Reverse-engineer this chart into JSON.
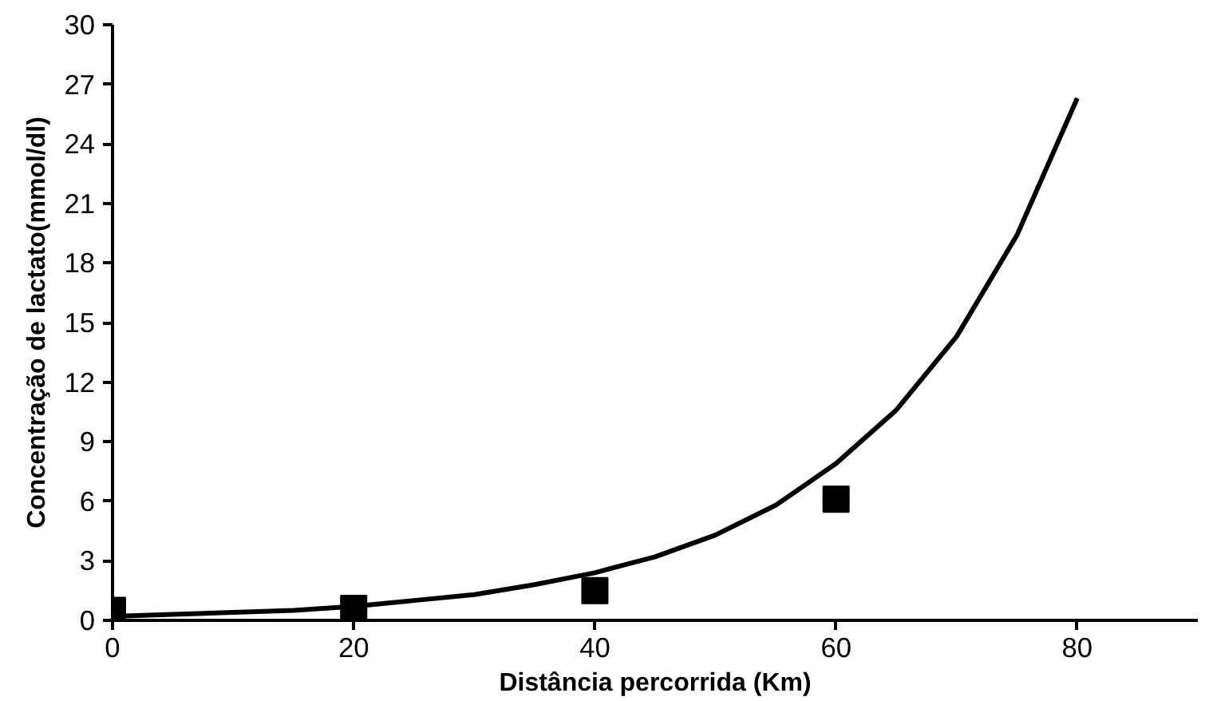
{
  "chart_data": {
    "type": "scatter",
    "xlabel": "Distância percorrida (Km)",
    "ylabel": "Concentração de lactato(mmol/dl)",
    "xlim": [
      0,
      90
    ],
    "xticks": [
      0,
      20,
      40,
      60,
      80
    ],
    "ylim": [
      0,
      30
    ],
    "yticks": [
      0,
      3,
      6,
      9,
      12,
      15,
      18,
      21,
      24,
      27,
      30
    ],
    "grid": false,
    "series": [
      {
        "color": "#000000",
        "marker": "square",
        "x": [
          0,
          20,
          40,
          60
        ],
        "values": [
          0.5,
          0.6,
          1.5,
          6.1
        ]
      },
      {
        "type": "line",
        "color": "#000000",
        "line_style": "solid",
        "x": [
          0,
          5,
          10,
          15,
          20,
          25,
          30,
          35,
          40,
          45,
          50,
          55,
          60,
          65,
          70,
          75,
          80
        ],
        "values": [
          0.2,
          0.3,
          0.4,
          0.5,
          0.7,
          1.0,
          1.3,
          1.8,
          2.4,
          3.2,
          4.3,
          5.8,
          7.9,
          10.6,
          14.3,
          19.4,
          26.3
        ]
      }
    ]
  }
}
